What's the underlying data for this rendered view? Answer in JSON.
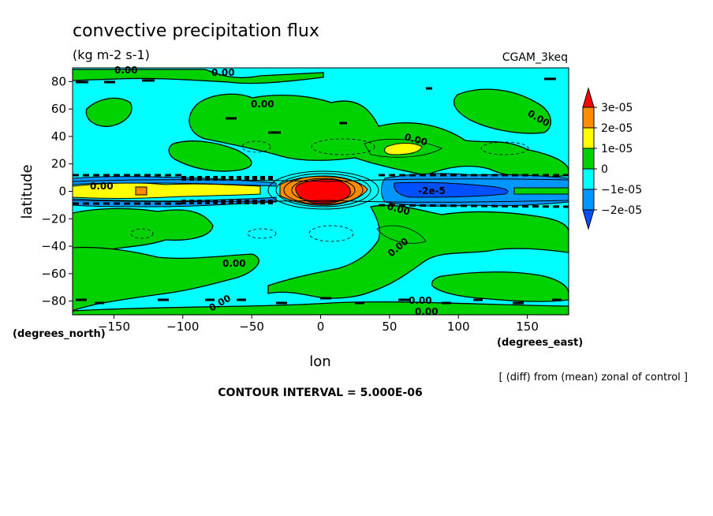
{
  "chart_data": {
    "type": "heatmap",
    "title": "convective precipitation flux",
    "units": "(kg m-2 s-1)",
    "experiment": "CGAM_3keq",
    "xlabel": "lon",
    "ylabel": "latitude",
    "x_units": "(degrees_east)",
    "y_units": "(degrees_north)",
    "xlim": [
      -180,
      180
    ],
    "ylim": [
      -90,
      90
    ],
    "x_ticks": [
      -150,
      -100,
      -50,
      0,
      50,
      100,
      150
    ],
    "y_ticks": [
      -80,
      -60,
      -40,
      -20,
      0,
      20,
      40,
      60,
      80
    ],
    "x_tick_labels": [
      "−150",
      "−100",
      "−50",
      "0",
      "50",
      "100",
      "150"
    ],
    "y_tick_labels": [
      "−80",
      "−60",
      "−40",
      "−20",
      "0",
      "20",
      "40",
      "60",
      "80"
    ],
    "colorbar": {
      "levels": [
        "3e-05",
        "2e-05",
        "1e-05",
        "0",
        "−1e-05",
        "−2e-05"
      ],
      "bins": [
        {
          "range": [
            3e-05,
            null
          ],
          "color": "#ff0000"
        },
        {
          "range": [
            2e-05,
            3e-05
          ],
          "color": "#ff8c00"
        },
        {
          "range": [
            1e-05,
            2e-05
          ],
          "color": "#ffff00"
        },
        {
          "range": [
            0,
            1e-05
          ],
          "color": "#00d200"
        },
        {
          "range": [
            -1e-05,
            0
          ],
          "color": "#00ffff"
        },
        {
          "range": [
            -2e-05,
            -1e-05
          ],
          "color": "#0096ff"
        },
        {
          "range": [
            null,
            -2e-05
          ],
          "color": "#0050ff"
        }
      ]
    },
    "contour_labels": [
      "0.00",
      "0.00",
      "0.00",
      "0.00",
      "0.00",
      "0.00",
      "0.00",
      "0.00",
      "0.00",
      "0.00",
      "0.00",
      "-2e-5"
    ],
    "contour_interval": "CONTOUR INTERVAL = 5.000E-06",
    "note": "[ (diff) from (mean) zonal of control ]",
    "features": [
      {
        "kind": "max",
        "lon": 5,
        "lat": 0,
        "value": 3.2e-05
      },
      {
        "kind": "positive_band",
        "lon_range": [
          -180,
          -25
        ],
        "lat_range": [
          -4,
          4
        ],
        "value": 1.2e-05
      },
      {
        "kind": "min_band",
        "lon_range": [
          45,
          140
        ],
        "lat_range": [
          -6,
          6
        ],
        "value": -2e-05
      }
    ]
  }
}
